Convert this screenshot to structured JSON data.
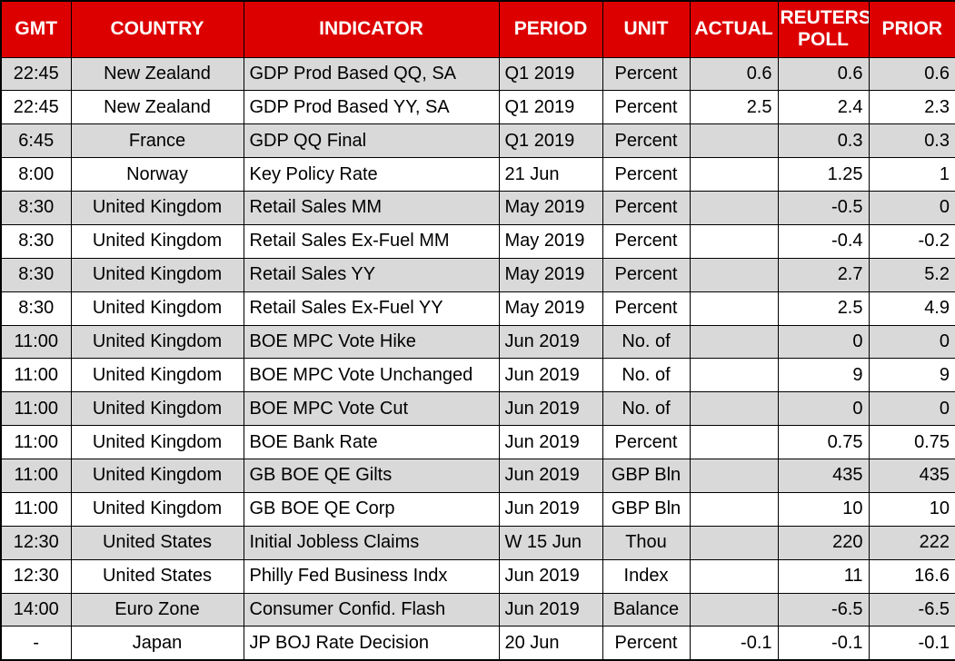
{
  "chart_data": {
    "type": "table",
    "columns": [
      "GMT",
      "COUNTRY",
      "INDICATOR",
      "PERIOD",
      "UNIT",
      "ACTUAL",
      "REUTERS POLL",
      "PRIOR"
    ],
    "rows": [
      [
        "22:45",
        "New Zealand",
        "GDP Prod Based QQ, SA",
        "Q1 2019",
        "Percent",
        "0.6",
        "0.6",
        "0.6"
      ],
      [
        "22:45",
        "New Zealand",
        "GDP Prod Based YY, SA",
        "Q1 2019",
        "Percent",
        "2.5",
        "2.4",
        "2.3"
      ],
      [
        "6:45",
        "France",
        "GDP QQ Final",
        "Q1 2019",
        "Percent",
        "",
        "0.3",
        "0.3"
      ],
      [
        "8:00",
        "Norway",
        "Key Policy Rate",
        "21 Jun",
        "Percent",
        "",
        "1.25",
        "1"
      ],
      [
        "8:30",
        "United Kingdom",
        "Retail Sales MM",
        "May 2019",
        "Percent",
        "",
        "-0.5",
        "0"
      ],
      [
        "8:30",
        "United Kingdom",
        "Retail Sales Ex-Fuel MM",
        "May 2019",
        "Percent",
        "",
        "-0.4",
        "-0.2"
      ],
      [
        "8:30",
        "United Kingdom",
        "Retail Sales YY",
        "May 2019",
        "Percent",
        "",
        "2.7",
        "5.2"
      ],
      [
        "8:30",
        "United Kingdom",
        "Retail Sales Ex-Fuel YY",
        "May 2019",
        "Percent",
        "",
        "2.5",
        "4.9"
      ],
      [
        "11:00",
        "United Kingdom",
        "BOE MPC Vote Hike",
        "Jun 2019",
        "No. of",
        "",
        "0",
        "0"
      ],
      [
        "11:00",
        "United Kingdom",
        "BOE MPC Vote Unchanged",
        "Jun 2019",
        "No. of",
        "",
        "9",
        "9"
      ],
      [
        "11:00",
        "United Kingdom",
        "BOE MPC Vote Cut",
        "Jun 2019",
        "No. of",
        "",
        "0",
        "0"
      ],
      [
        "11:00",
        "United Kingdom",
        "BOE Bank Rate",
        "Jun 2019",
        "Percent",
        "",
        "0.75",
        "0.75"
      ],
      [
        "11:00",
        "United Kingdom",
        "GB BOE QE Gilts",
        "Jun 2019",
        "GBP Bln",
        "",
        "435",
        "435"
      ],
      [
        "11:00",
        "United Kingdom",
        "GB BOE QE Corp",
        "Jun 2019",
        "GBP Bln",
        "",
        "10",
        "10"
      ],
      [
        "12:30",
        "United States",
        "Initial Jobless Claims",
        "W 15 Jun",
        "Thou",
        "",
        "220",
        "222"
      ],
      [
        "12:30",
        "United States",
        "Philly Fed Business Indx",
        "Jun 2019",
        "Index",
        "",
        "11",
        "16.6"
      ],
      [
        "14:00",
        "Euro Zone",
        "Consumer Confid. Flash",
        "Jun 2019",
        "Balance",
        "",
        "-6.5",
        "-6.5"
      ],
      [
        "-",
        "Japan",
        "JP BOJ Rate Decision",
        "20 Jun",
        "Percent",
        "-0.1",
        "-0.1",
        "-0.1"
      ]
    ]
  },
  "colors": {
    "header_bg": "#DD0000",
    "header_text": "#FFFFFF",
    "row_alt_bg": "#D9D9D9",
    "row_bg": "#FFFFFF",
    "border": "#000000"
  }
}
